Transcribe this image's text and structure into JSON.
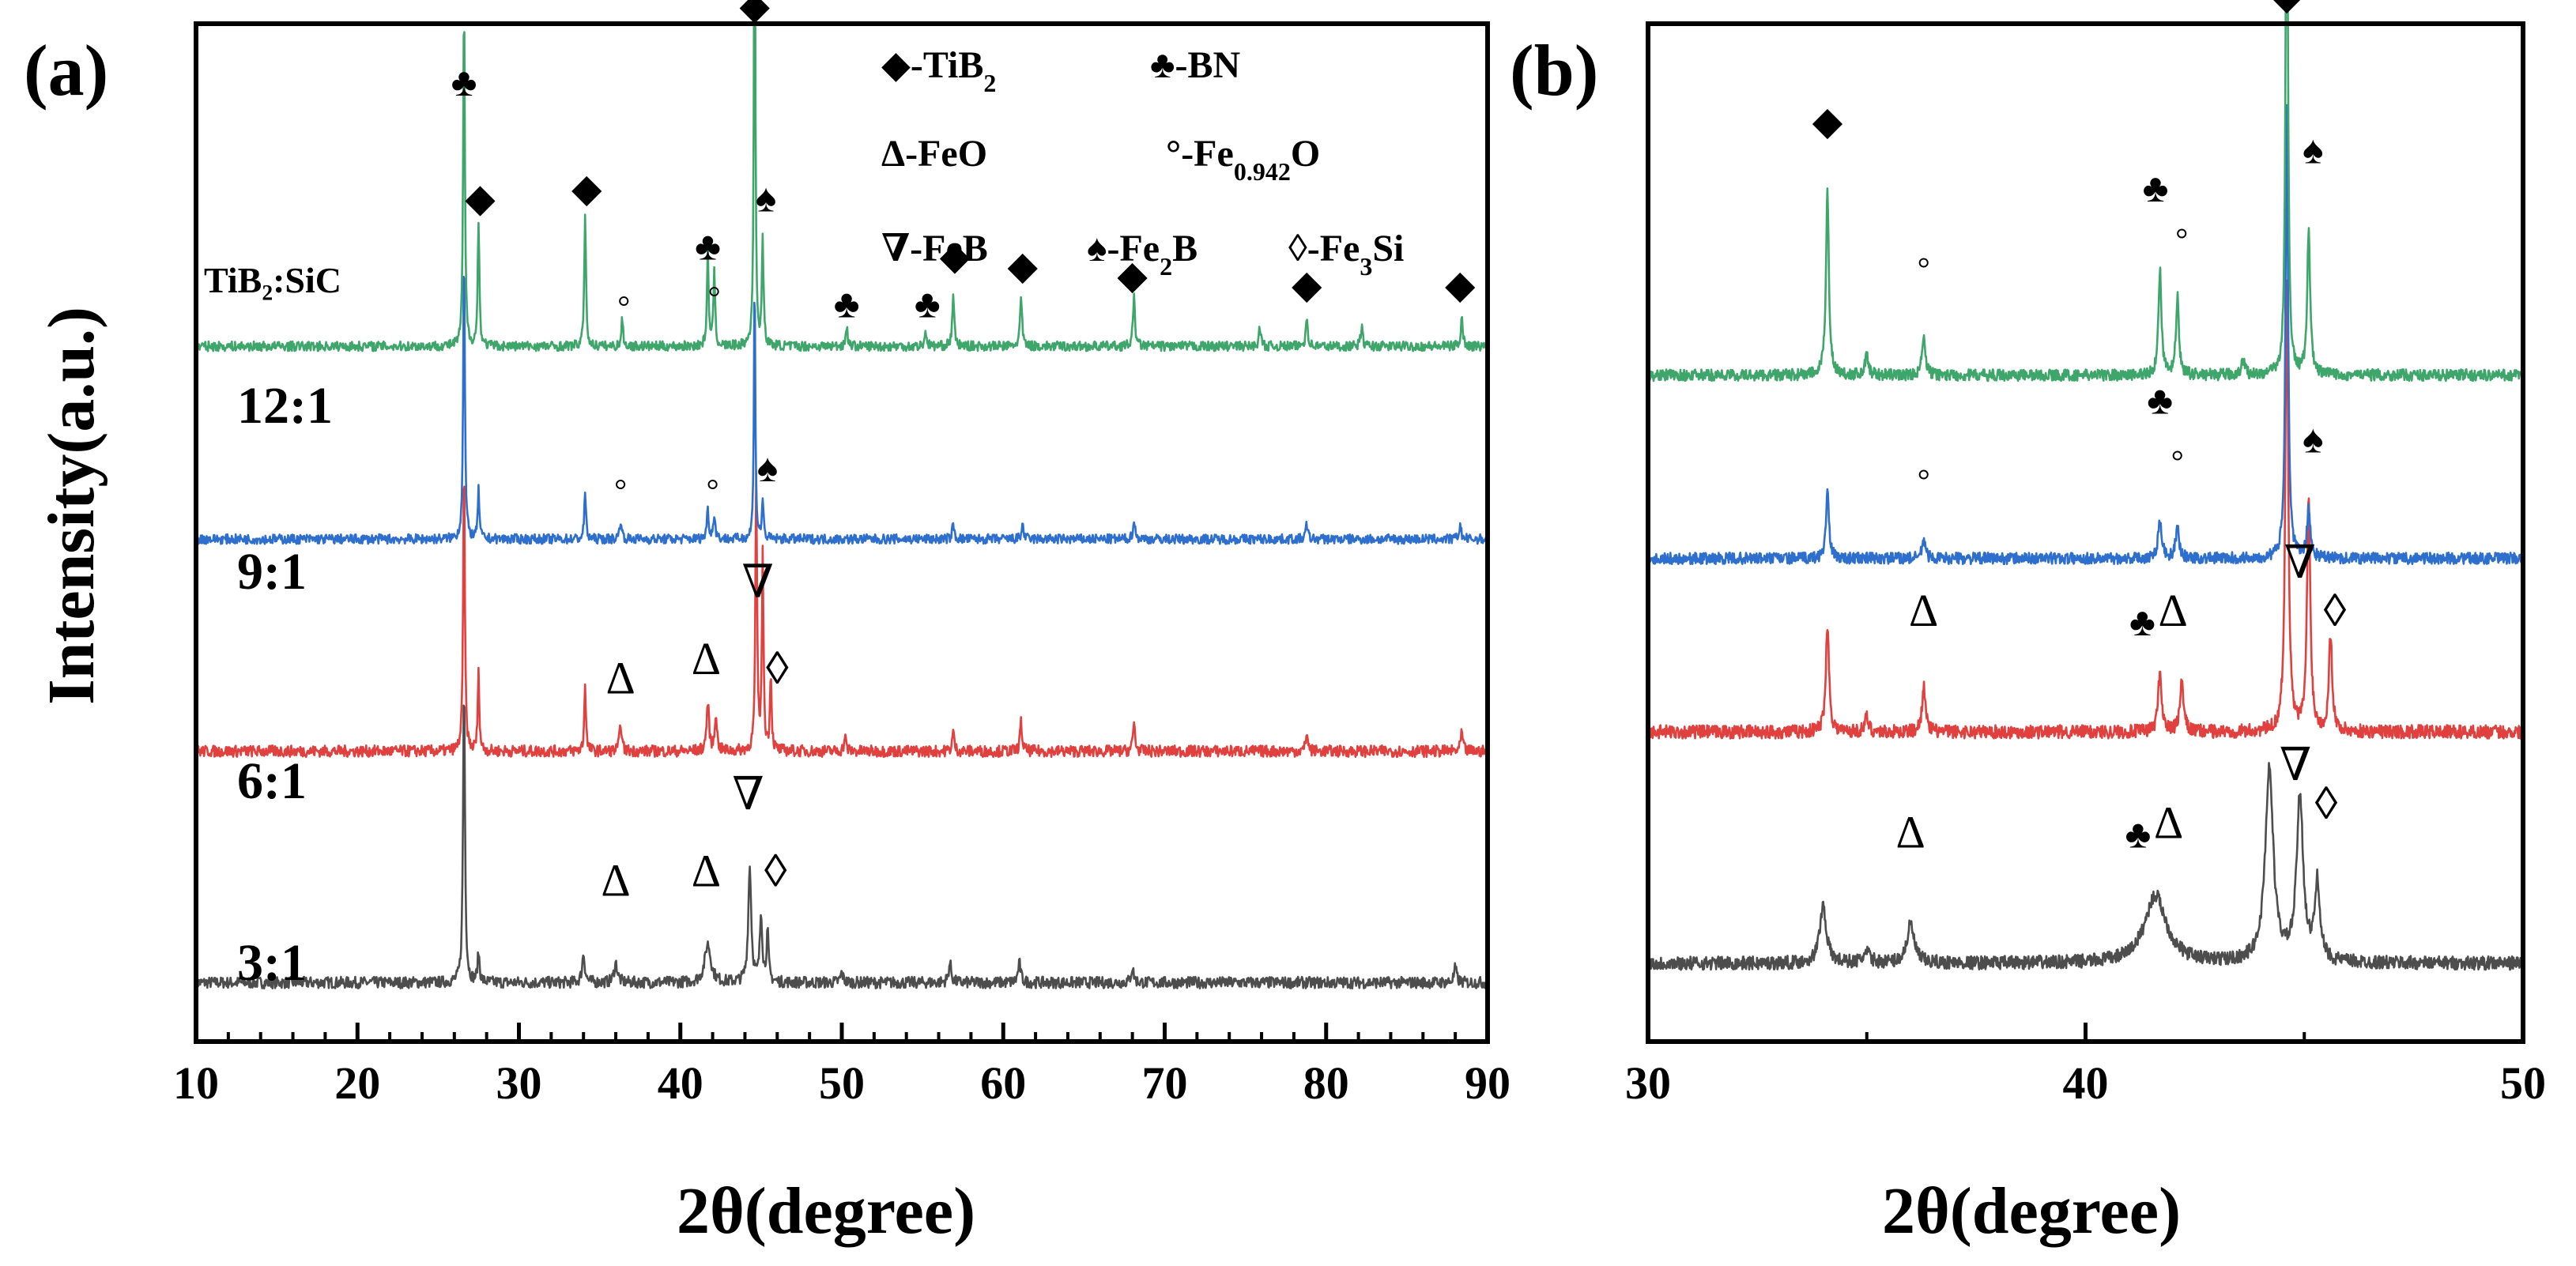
{
  "chart_data": [
    {
      "panel": "(a)",
      "type": "line",
      "title": "",
      "xlabel": "2θ(degree)",
      "ylabel": "Intensity(a.u.)",
      "xlim": [
        10,
        90
      ],
      "xticks": [
        10,
        20,
        30,
        40,
        50,
        60,
        70,
        80,
        90
      ],
      "legend_title": "TiB₂:SiC",
      "series": [
        {
          "name": "3:1",
          "color": "#4d4d4d",
          "baseline": 0.03,
          "noise": 0.006,
          "peaks": [
            [
              26.6,
              0.31,
              0.14
            ],
            [
              27.5,
              0.03,
              0.15
            ],
            [
              34.0,
              0.03,
              0.2
            ],
            [
              36.0,
              0.02,
              0.25
            ],
            [
              41.7,
              0.04,
              0.45
            ],
            [
              44.3,
              0.12,
              0.22
            ],
            [
              45.0,
              0.07,
              0.18
            ],
            [
              45.4,
              0.05,
              0.15
            ],
            [
              50.0,
              0.01,
              0.2
            ],
            [
              56.7,
              0.02,
              0.2
            ],
            [
              61.0,
              0.02,
              0.2
            ],
            [
              68.0,
              0.015,
              0.2
            ],
            [
              88.0,
              0.015,
              0.2
            ]
          ]
        },
        {
          "name": "6:1",
          "color": "#e0413f",
          "baseline": 0.27,
          "noise": 0.006,
          "peaks": [
            [
              26.6,
              0.3,
              0.12
            ],
            [
              27.5,
              0.08,
              0.12
            ],
            [
              34.1,
              0.07,
              0.12
            ],
            [
              36.3,
              0.03,
              0.15
            ],
            [
              41.7,
              0.05,
              0.18
            ],
            [
              42.2,
              0.04,
              0.15
            ],
            [
              44.7,
              0.28,
              0.12
            ],
            [
              45.1,
              0.2,
              0.12
            ],
            [
              45.6,
              0.08,
              0.12
            ],
            [
              50.2,
              0.015,
              0.15
            ],
            [
              56.9,
              0.02,
              0.15
            ],
            [
              61.1,
              0.03,
              0.15
            ],
            [
              68.1,
              0.03,
              0.15
            ],
            [
              78.8,
              0.02,
              0.15
            ],
            [
              88.4,
              0.02,
              0.15
            ]
          ]
        },
        {
          "name": "9:1",
          "color": "#2e6fce",
          "baseline": 0.49,
          "noise": 0.005,
          "peaks": [
            [
              26.6,
              0.3,
              0.12
            ],
            [
              27.5,
              0.05,
              0.12
            ],
            [
              34.1,
              0.05,
              0.12
            ],
            [
              36.3,
              0.02,
              0.15
            ],
            [
              41.7,
              0.03,
              0.15
            ],
            [
              42.1,
              0.025,
              0.15
            ],
            [
              44.6,
              0.28,
              0.1
            ],
            [
              45.1,
              0.04,
              0.12
            ],
            [
              56.9,
              0.015,
              0.15
            ],
            [
              61.2,
              0.015,
              0.15
            ],
            [
              68.1,
              0.02,
              0.15
            ],
            [
              78.8,
              0.015,
              0.15
            ],
            [
              88.3,
              0.015,
              0.15
            ]
          ]
        },
        {
          "name": "12:1",
          "color": "#3fa66b",
          "baseline": 0.69,
          "noise": 0.005,
          "peaks": [
            [
              26.6,
              0.36,
              0.12
            ],
            [
              27.5,
              0.13,
              0.12
            ],
            [
              34.1,
              0.14,
              0.12
            ],
            [
              36.4,
              0.03,
              0.12
            ],
            [
              41.7,
              0.1,
              0.12
            ],
            [
              42.1,
              0.08,
              0.12
            ],
            [
              44.6,
              0.57,
              0.1
            ],
            [
              45.1,
              0.11,
              0.12
            ],
            [
              50.3,
              0.02,
              0.15
            ],
            [
              55.2,
              0.015,
              0.15
            ],
            [
              56.9,
              0.05,
              0.15
            ],
            [
              61.1,
              0.05,
              0.15
            ],
            [
              68.1,
              0.05,
              0.15
            ],
            [
              75.9,
              0.02,
              0.15
            ],
            [
              78.8,
              0.03,
              0.15
            ],
            [
              82.2,
              0.02,
              0.15
            ],
            [
              88.4,
              0.03,
              0.15
            ]
          ]
        }
      ],
      "legend": [
        {
          "sym": "◆",
          "text": "-TiB",
          "sub": "2"
        },
        {
          "sym": "♣",
          "text": "-BN",
          "sub": ""
        },
        {
          "sym": "Δ",
          "text": "-FeO",
          "sub": ""
        },
        {
          "sym": "°",
          "text": "-Fe",
          "sub": "0.942",
          "tail": "O"
        },
        {
          "sym": "∇",
          "text": "-FeB",
          "sub": ""
        },
        {
          "sym": "♠",
          "text": "-Fe",
          "sub": "2",
          "tail": "B"
        },
        {
          "sym": "◊",
          "text": "-Fe",
          "sub": "3",
          "tail": "Si"
        }
      ],
      "markers": [
        {
          "sym": "◆",
          "x": 44.6,
          "y": 1.03
        },
        {
          "sym": "♣",
          "x": 26.6,
          "y": 0.95
        },
        {
          "sym": "◆",
          "x": 27.6,
          "y": 0.83
        },
        {
          "sym": "◆",
          "x": 34.2,
          "y": 0.84
        },
        {
          "sym": "♣",
          "x": 41.7,
          "y": 0.78
        },
        {
          "sym": "♠",
          "x": 45.3,
          "y": 0.83
        },
        {
          "sym": "◆",
          "x": 57.0,
          "y": 0.77
        },
        {
          "sym": "◆",
          "x": 61.2,
          "y": 0.76
        },
        {
          "sym": "◆",
          "x": 68.0,
          "y": 0.75
        },
        {
          "sym": "◆",
          "x": 78.8,
          "y": 0.74
        },
        {
          "sym": "◆",
          "x": 88.3,
          "y": 0.74
        },
        {
          "sym": "♣",
          "x": 50.3,
          "y": 0.72
        },
        {
          "sym": "♣",
          "x": 55.3,
          "y": 0.72
        },
        {
          "sym": "°",
          "x": 36.5,
          "y": 0.72
        },
        {
          "sym": "°",
          "x": 42.1,
          "y": 0.73
        },
        {
          "sym": "°",
          "x": 36.3,
          "y": 0.53
        },
        {
          "sym": "°",
          "x": 42.0,
          "y": 0.53
        },
        {
          "sym": "♠",
          "x": 45.4,
          "y": 0.55
        },
        {
          "sym": "∇",
          "x": 44.8,
          "y": 0.43
        },
        {
          "sym": "Δ",
          "x": 36.3,
          "y": 0.33
        },
        {
          "sym": "Δ",
          "x": 41.6,
          "y": 0.35
        },
        {
          "sym": "◊",
          "x": 46.0,
          "y": 0.34
        },
        {
          "sym": "∇",
          "x": 44.2,
          "y": 0.21
        },
        {
          "sym": "Δ",
          "x": 36.0,
          "y": 0.12
        },
        {
          "sym": "Δ",
          "x": 41.6,
          "y": 0.13
        },
        {
          "sym": "◊",
          "x": 45.9,
          "y": 0.13
        }
      ]
    },
    {
      "panel": "(b)",
      "type": "line",
      "title": "",
      "xlabel": "2θ(degree)",
      "ylabel": "",
      "xlim": [
        30,
        50
      ],
      "xticks": [
        30,
        40,
        50
      ],
      "series": [
        {
          "name": "3:1",
          "color": "#4d4d4d",
          "baseline": 0.05,
          "noise": 0.007,
          "peaks": [
            [
              34.0,
              0.06,
              0.18
            ],
            [
              36.0,
              0.04,
              0.2
            ],
            [
              41.6,
              0.07,
              0.6
            ],
            [
              44.2,
              0.2,
              0.22
            ],
            [
              44.9,
              0.17,
              0.18
            ],
            [
              45.3,
              0.08,
              0.14
            ],
            [
              35.0,
              0.01,
              0.2
            ]
          ]
        },
        {
          "name": "6:1",
          "color": "#e0413f",
          "baseline": 0.29,
          "noise": 0.007,
          "peaks": [
            [
              34.1,
              0.11,
              0.09
            ],
            [
              36.3,
              0.05,
              0.09
            ],
            [
              41.7,
              0.06,
              0.1
            ],
            [
              42.2,
              0.05,
              0.1
            ],
            [
              44.6,
              0.47,
              0.08
            ],
            [
              45.1,
              0.24,
              0.09
            ],
            [
              45.6,
              0.1,
              0.09
            ],
            [
              35.0,
              0.015,
              0.1
            ]
          ]
        },
        {
          "name": "9:1",
          "color": "#2e6fce",
          "baseline": 0.47,
          "noise": 0.006,
          "peaks": [
            [
              34.1,
              0.07,
              0.08
            ],
            [
              36.3,
              0.02,
              0.09
            ],
            [
              41.7,
              0.04,
              0.1
            ],
            [
              42.1,
              0.03,
              0.1
            ],
            [
              44.6,
              0.47,
              0.07
            ],
            [
              45.1,
              0.05,
              0.09
            ]
          ]
        },
        {
          "name": "12:1",
          "color": "#3fa66b",
          "baseline": 0.66,
          "noise": 0.006,
          "peaks": [
            [
              34.1,
              0.19,
              0.08
            ],
            [
              35.0,
              0.02,
              0.1
            ],
            [
              36.3,
              0.04,
              0.09
            ],
            [
              41.7,
              0.11,
              0.08
            ],
            [
              42.1,
              0.08,
              0.08
            ],
            [
              44.6,
              0.65,
              0.06
            ],
            [
              45.1,
              0.15,
              0.08
            ],
            [
              43.6,
              0.015,
              0.1
            ]
          ]
        }
      ],
      "markers": [
        {
          "sym": "◆",
          "x": 44.6,
          "y": 1.04
        },
        {
          "sym": "◆",
          "x": 34.1,
          "y": 0.91
        },
        {
          "sym": "♣",
          "x": 41.6,
          "y": 0.84
        },
        {
          "sym": "♠",
          "x": 45.2,
          "y": 0.88
        },
        {
          "sym": "°",
          "x": 36.3,
          "y": 0.76
        },
        {
          "sym": "°",
          "x": 42.2,
          "y": 0.79
        },
        {
          "sym": "♣",
          "x": 41.7,
          "y": 0.62
        },
        {
          "sym": "♠",
          "x": 45.2,
          "y": 0.58
        },
        {
          "sym": "°",
          "x": 36.3,
          "y": 0.54
        },
        {
          "sym": "°",
          "x": 42.1,
          "y": 0.56
        },
        {
          "sym": "∇",
          "x": 44.9,
          "y": 0.45
        },
        {
          "sym": "◊",
          "x": 45.7,
          "y": 0.4
        },
        {
          "sym": "Δ",
          "x": 36.3,
          "y": 0.4
        },
        {
          "sym": "♣",
          "x": 41.3,
          "y": 0.39
        },
        {
          "sym": "Δ",
          "x": 42.0,
          "y": 0.4
        },
        {
          "sym": "∇",
          "x": 44.8,
          "y": 0.24
        },
        {
          "sym": "◊",
          "x": 45.5,
          "y": 0.2
        },
        {
          "sym": "Δ",
          "x": 36.0,
          "y": 0.17
        },
        {
          "sym": "♣",
          "x": 41.2,
          "y": 0.17
        },
        {
          "sym": "Δ",
          "x": 41.9,
          "y": 0.18
        }
      ]
    }
  ]
}
